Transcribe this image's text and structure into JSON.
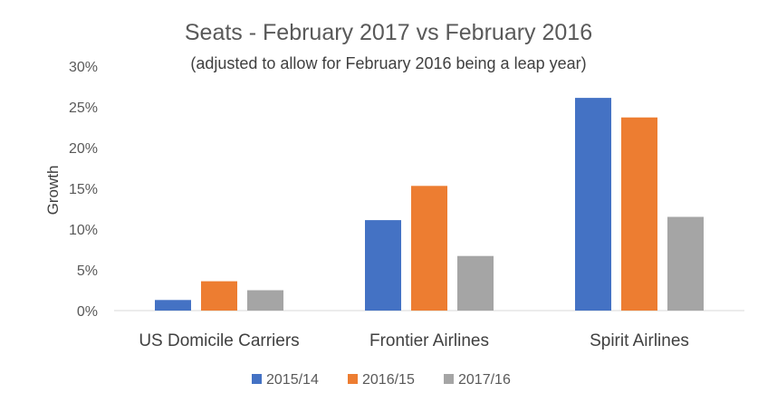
{
  "chart_data": {
    "type": "bar",
    "title": "Seats - February 2017 vs February 2016",
    "subtitle": "(adjusted to allow for February 2016 being a leap year)",
    "xlabel": "",
    "ylabel": "Growth",
    "categories": [
      "US Domicile Carriers",
      "Frontier Airlines",
      "Spirit Airlines"
    ],
    "series": [
      {
        "name": "2015/14",
        "color": "#4472C4",
        "values": [
          1.3,
          11.1,
          26.1
        ]
      },
      {
        "name": "2016/15",
        "color": "#ED7D31",
        "values": [
          3.6,
          15.3,
          23.7
        ]
      },
      {
        "name": "2017/16",
        "color": "#A5A5A5",
        "values": [
          2.5,
          6.7,
          11.5
        ]
      }
    ],
    "ylim": [
      0,
      30
    ],
    "yticks": [
      0,
      5,
      10,
      15,
      20,
      25,
      30
    ],
    "ytick_labels": [
      "0%",
      "5%",
      "10%",
      "15%",
      "20%",
      "25%",
      "30%"
    ],
    "grid": false,
    "legend_position": "bottom"
  }
}
